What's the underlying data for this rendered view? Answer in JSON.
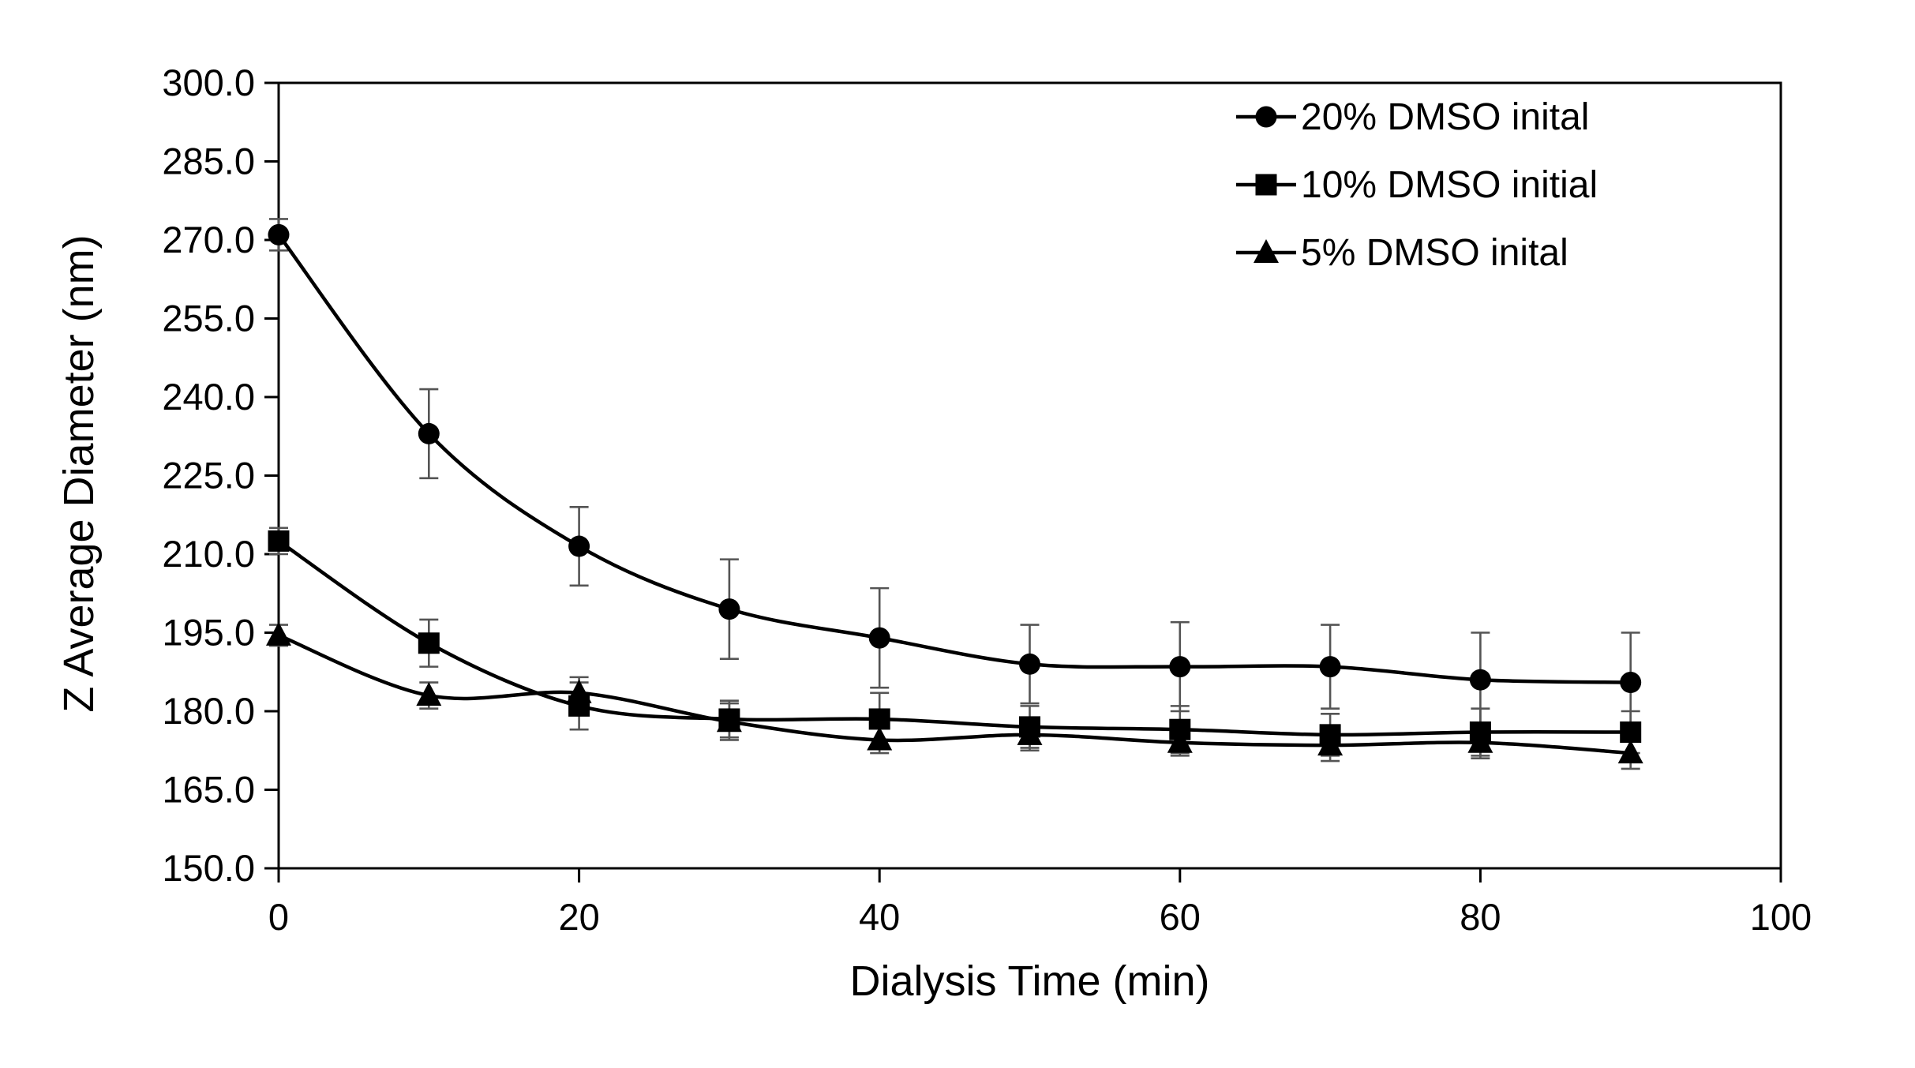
{
  "page": {
    "background": "#ffffff"
  },
  "chart_data": {
    "type": "line",
    "title": "",
    "xlabel": "Dialysis Time (min)",
    "ylabel": "Z Average Diameter (nm)",
    "xlim": [
      0,
      100
    ],
    "ylim": [
      150,
      300
    ],
    "x_ticks": [
      0,
      20,
      40,
      60,
      80,
      100
    ],
    "y_ticks": [
      150,
      165,
      180,
      195,
      210,
      225,
      240,
      255,
      270,
      285,
      300
    ],
    "y_tick_decimals": 1,
    "grid": false,
    "legend_position": "top-right-inside",
    "line_color": "#000000",
    "marker_color": "#000000",
    "error_bar_color": "#545454",
    "x": [
      0,
      10,
      20,
      30,
      40,
      50,
      60,
      70,
      80,
      90
    ],
    "series": [
      {
        "name": "20% DMSO inital",
        "marker": "circle",
        "values": [
          271,
          233,
          211.5,
          199.5,
          194,
          189,
          188.5,
          188.5,
          186,
          185.5
        ],
        "errors": [
          3,
          8.5,
          7.5,
          9.5,
          9.5,
          7.5,
          8.5,
          8,
          9,
          9.5
        ]
      },
      {
        "name": "10% DMSO initial",
        "marker": "square",
        "values": [
          212.5,
          193,
          181,
          178.5,
          178.5,
          177,
          176.5,
          175.5,
          176,
          176
        ],
        "errors": [
          2.5,
          4.5,
          4.5,
          3.5,
          5,
          4,
          4.5,
          4,
          4.5,
          4
        ]
      },
      {
        "name": "5% DMSO inital",
        "marker": "triangle",
        "values": [
          194.5,
          183,
          183.5,
          178,
          174.5,
          175.5,
          174,
          173.5,
          174,
          172
        ],
        "errors": [
          2,
          2.5,
          3,
          3.5,
          2.5,
          3,
          2.5,
          3,
          3,
          3
        ]
      }
    ]
  }
}
